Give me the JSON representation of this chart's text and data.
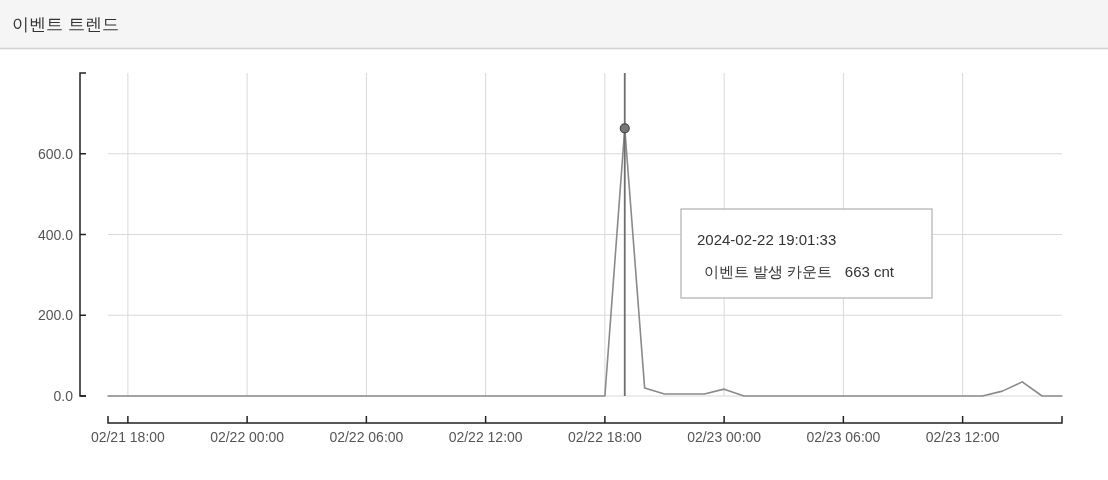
{
  "chart_data": {
    "type": "line",
    "title": "이벤트 트렌드",
    "series": [
      {
        "color": "#8a8a8a",
        "x": [
          "2024-02-21T17:00",
          "2024-02-22T18:00",
          "2024-02-22T19:00",
          "2024-02-22T20:00",
          "2024-02-22T21:00",
          "2024-02-22T22:00",
          "2024-02-22T23:00",
          "2024-02-23T00:00",
          "2024-02-23T01:00",
          "2024-02-23T13:00",
          "2024-02-23T14:00",
          "2024-02-23T15:00",
          "2024-02-23T16:00",
          "2024-02-23T17:00"
        ],
        "values": [
          0,
          0,
          663,
          20,
          5,
          5,
          5,
          17,
          0,
          0,
          12,
          35,
          0,
          0
        ]
      }
    ],
    "xlim": [
      "2024-02-21T17:00",
      "2024-02-23T17:00"
    ],
    "xticks": [
      {
        "value": "2024-02-21T18:00",
        "label": "02/21 18:00"
      },
      {
        "value": "2024-02-22T00:00",
        "label": "02/22 00:00"
      },
      {
        "value": "2024-02-22T06:00",
        "label": "02/22 06:00"
      },
      {
        "value": "2024-02-22T12:00",
        "label": "02/22 12:00"
      },
      {
        "value": "2024-02-22T18:00",
        "label": "02/22 18:00"
      },
      {
        "value": "2024-02-23T00:00",
        "label": "02/23 00:00"
      },
      {
        "value": "2024-02-23T06:00",
        "label": "02/23 06:00"
      },
      {
        "value": "2024-02-23T12:00",
        "label": "02/23 12:00"
      }
    ],
    "ylim": [
      0,
      800
    ],
    "yticks": [
      {
        "value": 0,
        "label": "0.0"
      },
      {
        "value": 200,
        "label": "200.0"
      },
      {
        "value": 400,
        "label": "400.0"
      },
      {
        "value": 600,
        "label": "600.0"
      }
    ],
    "grid": true,
    "ref_lines": [
      {
        "axis": "x",
        "value": "2024-02-22T19:00",
        "color": "#6e6e6e"
      }
    ],
    "annotations": [
      "2024-02-22 19:01:33",
      "이벤트 발생 카운트   663 cnt"
    ]
  }
}
